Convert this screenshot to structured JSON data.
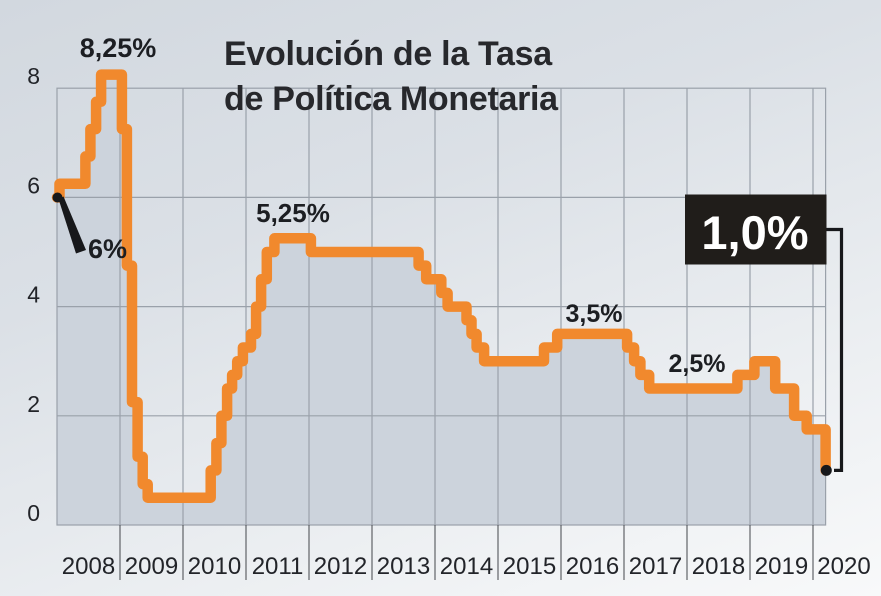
{
  "title": {
    "line1": "Evolución de la Tasa",
    "line2": "de Política Monetaria"
  },
  "chart_data": {
    "type": "line",
    "step_interpolation": "step-after",
    "title": "Evolución de la Tasa de Política Monetaria",
    "unit": "%",
    "x_range": [
      2008.0,
      2020.2
    ],
    "y_range": [
      0,
      8
    ],
    "grid": true,
    "legend": "none",
    "y_ticks": [
      {
        "value": 8,
        "label": "8"
      },
      {
        "value": 6,
        "label": "6"
      },
      {
        "value": 4,
        "label": "4"
      },
      {
        "value": 2,
        "label": "2"
      },
      {
        "value": 0,
        "label": "0"
      }
    ],
    "x_tick_labels": [
      "2008",
      "2009",
      "2010",
      "2011",
      "2012",
      "2013",
      "2014",
      "2015",
      "2016",
      "2017",
      "2018",
      "2019",
      "2020"
    ],
    "series": [
      {
        "name": "Tasa de Política Monetaria (%)",
        "points": [
          [
            2008.0,
            6.0
          ],
          [
            2008.04,
            6.25
          ],
          [
            2008.45,
            6.75
          ],
          [
            2008.53,
            7.25
          ],
          [
            2008.62,
            7.75
          ],
          [
            2008.7,
            8.25
          ],
          [
            2009.03,
            7.25
          ],
          [
            2009.11,
            4.75
          ],
          [
            2009.19,
            2.25
          ],
          [
            2009.28,
            1.25
          ],
          [
            2009.36,
            0.75
          ],
          [
            2009.44,
            0.5
          ],
          [
            2010.44,
            1.0
          ],
          [
            2010.53,
            1.5
          ],
          [
            2010.61,
            2.0
          ],
          [
            2010.7,
            2.5
          ],
          [
            2010.78,
            2.75
          ],
          [
            2010.86,
            3.0
          ],
          [
            2010.95,
            3.25
          ],
          [
            2011.08,
            3.5
          ],
          [
            2011.16,
            4.0
          ],
          [
            2011.24,
            4.5
          ],
          [
            2011.33,
            5.0
          ],
          [
            2011.45,
            5.25
          ],
          [
            2012.03,
            5.0
          ],
          [
            2013.74,
            4.75
          ],
          [
            2013.86,
            4.5
          ],
          [
            2014.1,
            4.25
          ],
          [
            2014.2,
            4.0
          ],
          [
            2014.5,
            3.75
          ],
          [
            2014.58,
            3.5
          ],
          [
            2014.66,
            3.25
          ],
          [
            2014.78,
            3.0
          ],
          [
            2015.73,
            3.25
          ],
          [
            2015.94,
            3.5
          ],
          [
            2017.05,
            3.25
          ],
          [
            2017.16,
            3.0
          ],
          [
            2017.26,
            2.75
          ],
          [
            2017.4,
            2.5
          ],
          [
            2018.8,
            2.75
          ],
          [
            2019.07,
            3.0
          ],
          [
            2019.4,
            2.5
          ],
          [
            2019.7,
            2.0
          ],
          [
            2019.9,
            1.75
          ],
          [
            2020.2,
            1.0
          ]
        ]
      }
    ],
    "annotations": [
      {
        "id": "peak-2008",
        "text": "8,25%",
        "value": 8.25,
        "style": "bold-label"
      },
      {
        "id": "start",
        "text": "6%",
        "value": 6.0,
        "style": "wedge-callout"
      },
      {
        "id": "peak-2011",
        "text": "5,25%",
        "value": 5.25,
        "style": "bold-label"
      },
      {
        "id": "plateau-2016",
        "text": "3,5%",
        "value": 3.5,
        "style": "bold-label"
      },
      {
        "id": "plateau-2018",
        "text": "2,5%",
        "value": 2.5,
        "style": "bold-label"
      },
      {
        "id": "current",
        "text": "1,0%",
        "value": 1.0,
        "style": "black-box-callout"
      }
    ],
    "colors": {
      "line": "#F1892D",
      "area_fill": "#CCD3DC",
      "grid": "#9AA1AA",
      "tick": "#43464B",
      "text": "#222429",
      "annotation_text": "#1C1E22",
      "annotation_box": "#201D1A",
      "annotation_box_text": "#FFFFFF",
      "marker": "#17181B"
    }
  }
}
